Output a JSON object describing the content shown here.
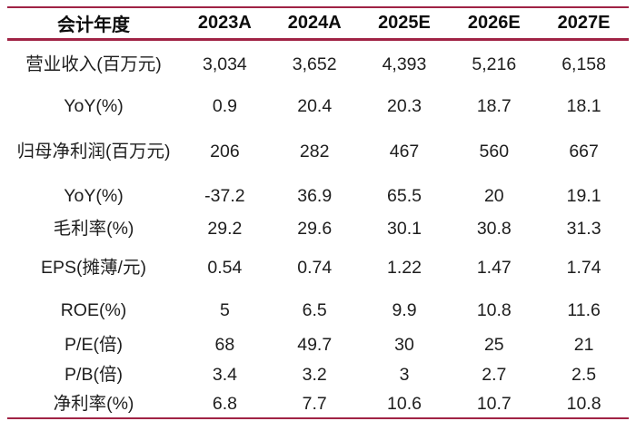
{
  "colors": {
    "rule": "#A02345",
    "text": "#1e1e1e"
  },
  "chart_data": {
    "type": "table",
    "title": "",
    "columns": [
      "会计年度",
      "2023A",
      "2024A",
      "2025E",
      "2026E",
      "2027E"
    ],
    "rows": [
      {
        "label": "营业收入(百万元)",
        "values": [
          "3,034",
          "3,652",
          "4,393",
          "5,216",
          "6,158"
        ]
      },
      {
        "label": "YoY(%)",
        "values": [
          "0.9",
          "20.4",
          "20.3",
          "18.7",
          "18.1"
        ]
      },
      {
        "label": "归母净利润(百万元)",
        "values": [
          "206",
          "282",
          "467",
          "560",
          "667"
        ]
      },
      {
        "label": "YoY(%)",
        "values": [
          "-37.2",
          "36.9",
          "65.5",
          "20",
          "19.1"
        ]
      },
      {
        "label": "毛利率(%)",
        "values": [
          "29.2",
          "29.6",
          "30.1",
          "30.8",
          "31.3"
        ]
      },
      {
        "label": "EPS(摊薄/元)",
        "values": [
          "0.54",
          "0.74",
          "1.22",
          "1.47",
          "1.74"
        ]
      },
      {
        "label": "ROE(%)",
        "values": [
          "5",
          "6.5",
          "9.9",
          "10.8",
          "11.6"
        ]
      },
      {
        "label": "P/E(倍)",
        "values": [
          "68",
          "49.7",
          "30",
          "25",
          "21"
        ]
      },
      {
        "label": "P/B(倍)",
        "values": [
          "3.4",
          "3.2",
          "3",
          "2.7",
          "2.5"
        ]
      },
      {
        "label": "净利率(%)",
        "values": [
          "6.8",
          "7.7",
          "10.6",
          "10.7",
          "10.8"
        ]
      }
    ]
  }
}
